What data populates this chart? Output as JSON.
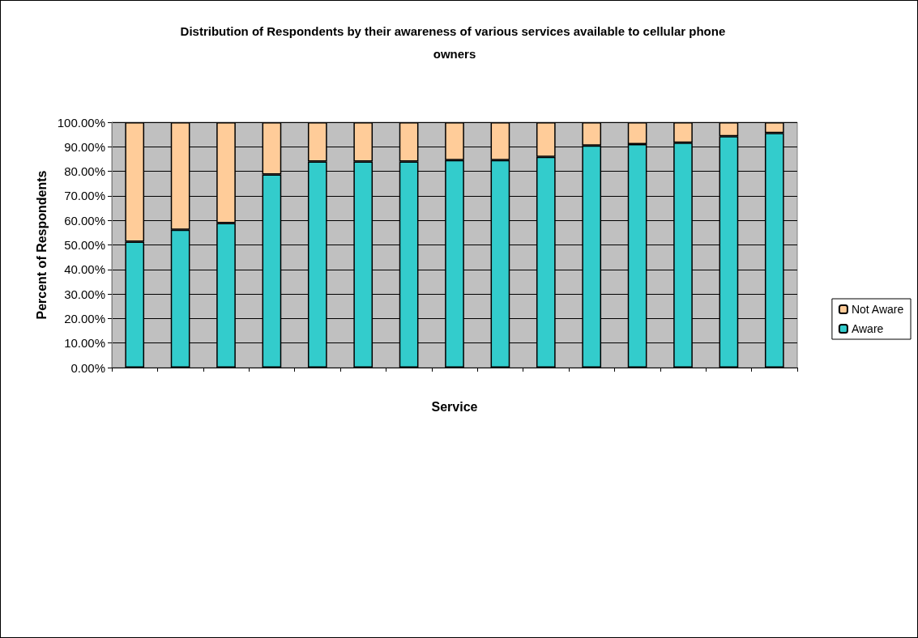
{
  "chart_data": {
    "type": "bar",
    "title": "Distribution of Respondents by their awareness of various services available to cellular phone owners",
    "xlabel": "Service",
    "ylabel": "Percent of Respondents",
    "categories": [
      null,
      null,
      null,
      null,
      null,
      null,
      null,
      null,
      null,
      null,
      null,
      null,
      null,
      null,
      null
    ],
    "stacked": true,
    "legend": "right",
    "grid": "y",
    "ylim": [
      0,
      100
    ],
    "yticks": [
      {
        "value": 0,
        "label": "0.00%"
      },
      {
        "value": 10,
        "label": "10.00%"
      },
      {
        "value": 20,
        "label": "20.00%"
      },
      {
        "value": 30,
        "label": "30.00%"
      },
      {
        "value": 40,
        "label": "40.00%"
      },
      {
        "value": 50,
        "label": "50.00%"
      },
      {
        "value": 60,
        "label": "60.00%"
      },
      {
        "value": 70,
        "label": "70.00%"
      },
      {
        "value": 80,
        "label": "80.00%"
      },
      {
        "value": 90,
        "label": "90.00%"
      },
      {
        "value": 100,
        "label": "100.00%"
      }
    ],
    "series": [
      {
        "name": "Aware",
        "color": "#33cccc",
        "values": [
          51.3,
          56.2,
          58.9,
          78.7,
          84.0,
          84.0,
          84.0,
          84.6,
          84.6,
          85.9,
          90.5,
          91.1,
          91.7,
          94.3,
          95.6
        ]
      },
      {
        "name": "Not Aware",
        "color": "#ffcc99",
        "values": [
          48.7,
          43.8,
          41.1,
          21.3,
          16.0,
          16.0,
          16.0,
          15.4,
          15.4,
          14.1,
          9.5,
          8.9,
          8.3,
          5.7,
          4.4
        ]
      }
    ]
  }
}
